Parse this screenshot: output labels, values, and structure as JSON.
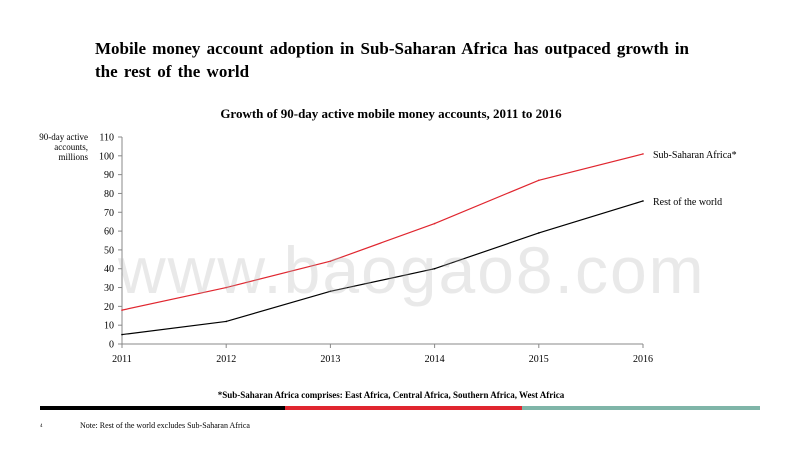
{
  "slide": {
    "headline": "Mobile money account adoption in Sub-Saharan  Africa has outpaced growth  in  the rest of the world",
    "footnote": "*Sub-Saharan Africa comprises: East Africa, Central Africa, Southern Africa, West Africa",
    "note": "Note: Rest of the world excludes Sub-Saharan Africa",
    "page_number": "4",
    "watermark": "www.baogao8.com",
    "bar_colors": [
      "#000000",
      "#e0262f",
      "#7fb5a8"
    ]
  },
  "chart_data": {
    "type": "line",
    "title": "Growth  of 90-day active mobile money accounts, 2011 to 2016",
    "ylabel": "90-day active accounts, millions",
    "xlabel": "",
    "x": [
      2011,
      2012,
      2013,
      2014,
      2015,
      2016
    ],
    "x_ticks": [
      "2011",
      "2012",
      "2013",
      "2014",
      "2015",
      "2016"
    ],
    "y_ticks": [
      "0",
      "10",
      "20",
      "30",
      "40",
      "50",
      "60",
      "70",
      "80",
      "90",
      "100",
      "110"
    ],
    "ylim": [
      0,
      110
    ],
    "grid": false,
    "series": [
      {
        "name": "Sub-Saharan  Africa*",
        "color": "#e0262f",
        "values": [
          18,
          30,
          44,
          64,
          87,
          101
        ]
      },
      {
        "name": "Rest of the world",
        "color": "#000000",
        "values": [
          5,
          12,
          28,
          40,
          59,
          76
        ]
      }
    ]
  }
}
